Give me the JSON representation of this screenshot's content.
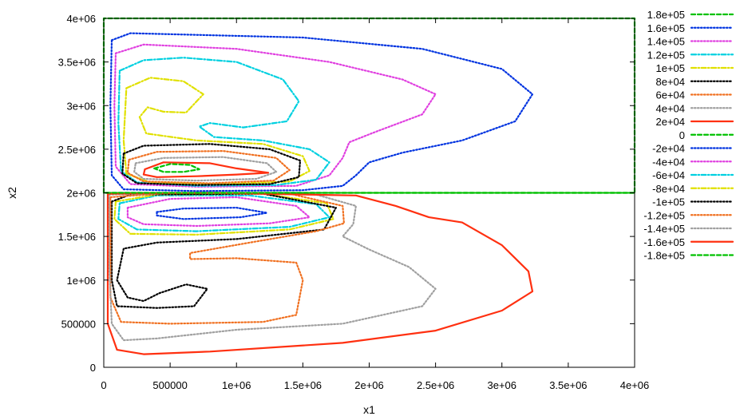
{
  "chart_data": {
    "type": "line",
    "title": "",
    "xlabel": "x1",
    "ylabel": "x2",
    "xlim": [
      0,
      4000000
    ],
    "ylim": [
      0,
      4000000
    ],
    "x_ticks": [
      0,
      500000,
      1000000,
      1500000,
      2000000,
      2500000,
      3000000,
      3500000,
      4000000
    ],
    "x_tick_labels": [
      "0",
      "500000",
      "1e+06",
      "1.5e+06",
      "2e+06",
      "2.5e+06",
      "3e+06",
      "3.5e+06",
      "4e+06"
    ],
    "y_ticks": [
      0,
      500000,
      1000000,
      1500000,
      2000000,
      2500000,
      3000000,
      3500000,
      4000000
    ],
    "y_tick_labels": [
      "0",
      "500000",
      "1e+06",
      "1.5e+06",
      "2e+06",
      "2.5e+06",
      "3e+06",
      "3.5e+06",
      "4e+06"
    ],
    "grid": false,
    "legend_position": "outside-right",
    "series": [
      {
        "name": "1.8e+05",
        "color": "#00c000",
        "dash": "dashed",
        "points": [
          [
            0,
            2000000
          ],
          [
            0,
            4000000
          ],
          [
            4000000,
            4000000
          ],
          [
            4000000,
            2000000
          ],
          [
            0,
            2000000
          ]
        ]
      },
      {
        "name": "1.6e+05",
        "color": "#0033e0",
        "dash": "dotted",
        "points": [
          [
            60000,
            3750000
          ],
          [
            200000,
            3830000
          ],
          [
            1500000,
            3780000
          ],
          [
            2400000,
            3650000
          ],
          [
            3000000,
            3420000
          ],
          [
            3230000,
            3130000
          ],
          [
            3100000,
            2820000
          ],
          [
            2700000,
            2600000
          ],
          [
            2250000,
            2460000
          ],
          [
            2000000,
            2350000
          ],
          [
            1900000,
            2200000
          ],
          [
            1800000,
            2080000
          ],
          [
            1500000,
            2030000
          ],
          [
            700000,
            2020000
          ],
          [
            150000,
            2040000
          ],
          [
            60000,
            2200000
          ],
          [
            50000,
            3000000
          ],
          [
            60000,
            3750000
          ]
        ]
      },
      {
        "name": "1.4e+05",
        "color": "#e040e0",
        "dash": "dotted",
        "points": [
          [
            90000,
            3600000
          ],
          [
            300000,
            3700000
          ],
          [
            1000000,
            3650000
          ],
          [
            1700000,
            3500000
          ],
          [
            2250000,
            3300000
          ],
          [
            2500000,
            3130000
          ],
          [
            2400000,
            2900000
          ],
          [
            2050000,
            2700000
          ],
          [
            1850000,
            2580000
          ],
          [
            1800000,
            2400000
          ],
          [
            1700000,
            2200000
          ],
          [
            1450000,
            2080000
          ],
          [
            700000,
            2070000
          ],
          [
            200000,
            2100000
          ],
          [
            90000,
            2300000
          ],
          [
            80000,
            3000000
          ],
          [
            90000,
            3600000
          ]
        ]
      },
      {
        "name": "1.2e+05",
        "color": "#00d0e0",
        "dash": "dashdot",
        "points": [
          [
            120000,
            3400000
          ],
          [
            300000,
            3520000
          ],
          [
            600000,
            3550000
          ],
          [
            1000000,
            3500000
          ],
          [
            1350000,
            3300000
          ],
          [
            1470000,
            3050000
          ],
          [
            1380000,
            2820000
          ],
          [
            1050000,
            2750000
          ],
          [
            800000,
            2800000
          ],
          [
            720000,
            2760000
          ],
          [
            830000,
            2640000
          ],
          [
            1200000,
            2600000
          ],
          [
            1550000,
            2500000
          ],
          [
            1700000,
            2350000
          ],
          [
            1600000,
            2150000
          ],
          [
            1300000,
            2090000
          ],
          [
            700000,
            2080000
          ],
          [
            250000,
            2120000
          ],
          [
            130000,
            2250000
          ],
          [
            110000,
            2800000
          ],
          [
            120000,
            3400000
          ]
        ]
      },
      {
        "name": "1e+05",
        "color": "#e0e000",
        "dash": "dashdot",
        "points": [
          [
            170000,
            3200000
          ],
          [
            350000,
            3320000
          ],
          [
            600000,
            3280000
          ],
          [
            750000,
            3130000
          ],
          [
            620000,
            2920000
          ],
          [
            450000,
            2930000
          ],
          [
            330000,
            2980000
          ],
          [
            270000,
            2870000
          ],
          [
            320000,
            2680000
          ],
          [
            700000,
            2600000
          ],
          [
            1200000,
            2560000
          ],
          [
            1500000,
            2420000
          ],
          [
            1550000,
            2250000
          ],
          [
            1400000,
            2130000
          ],
          [
            900000,
            2100000
          ],
          [
            350000,
            2120000
          ],
          [
            170000,
            2220000
          ],
          [
            150000,
            2600000
          ],
          [
            170000,
            3200000
          ]
        ]
      },
      {
        "name": "8e+04",
        "color": "#000000",
        "dash": "dotted",
        "points": [
          [
            150000,
            2450000
          ],
          [
            300000,
            2540000
          ],
          [
            800000,
            2560000
          ],
          [
            1250000,
            2500000
          ],
          [
            1480000,
            2370000
          ],
          [
            1470000,
            2180000
          ],
          [
            1250000,
            2100000
          ],
          [
            700000,
            2090000
          ],
          [
            250000,
            2110000
          ],
          [
            140000,
            2220000
          ],
          [
            150000,
            2450000
          ]
        ]
      },
      {
        "name": "6e+04",
        "color": "#f07020",
        "dash": "dotted",
        "points": [
          [
            190000,
            2380000
          ],
          [
            400000,
            2470000
          ],
          [
            900000,
            2480000
          ],
          [
            1300000,
            2400000
          ],
          [
            1400000,
            2260000
          ],
          [
            1280000,
            2140000
          ],
          [
            800000,
            2110000
          ],
          [
            300000,
            2130000
          ],
          [
            180000,
            2230000
          ],
          [
            190000,
            2380000
          ]
        ]
      },
      {
        "name": "4e+04",
        "color": "#a0a0a0",
        "dash": "dotted",
        "points": [
          [
            240000,
            2340000
          ],
          [
            450000,
            2400000
          ],
          [
            900000,
            2410000
          ],
          [
            1230000,
            2340000
          ],
          [
            1300000,
            2240000
          ],
          [
            1150000,
            2160000
          ],
          [
            700000,
            2140000
          ],
          [
            300000,
            2160000
          ],
          [
            230000,
            2240000
          ],
          [
            240000,
            2340000
          ]
        ]
      },
      {
        "name": "2e+04",
        "color": "#ff3010",
        "dash": "solid",
        "points": [
          [
            310000,
            2270000
          ],
          [
            450000,
            2350000
          ],
          [
            800000,
            2340000
          ],
          [
            1000000,
            2280000
          ],
          [
            1240000,
            2230000
          ],
          [
            1000000,
            2210000
          ],
          [
            700000,
            2190000
          ],
          [
            400000,
            2180000
          ],
          [
            300000,
            2210000
          ],
          [
            310000,
            2270000
          ]
        ]
      },
      {
        "name": "0",
        "color": "#00c000",
        "dash": "dashed",
        "points": [
          [
            380000,
            2280000
          ],
          [
            500000,
            2330000
          ],
          [
            650000,
            2320000
          ],
          [
            720000,
            2270000
          ],
          [
            600000,
            2240000
          ],
          [
            450000,
            2240000
          ],
          [
            380000,
            2280000
          ]
        ]
      },
      {
        "name": "-2e+04",
        "color": "#0033e0",
        "dash": "dotted",
        "points": [
          [
            400000,
            1780000
          ],
          [
            600000,
            1820000
          ],
          [
            1000000,
            1830000
          ],
          [
            1230000,
            1770000
          ],
          [
            1030000,
            1720000
          ],
          [
            600000,
            1700000
          ],
          [
            400000,
            1740000
          ],
          [
            400000,
            1780000
          ]
        ]
      },
      {
        "name": "-4e+04",
        "color": "#e040e0",
        "dash": "dotted",
        "points": [
          [
            180000,
            1830000
          ],
          [
            500000,
            1930000
          ],
          [
            1000000,
            1950000
          ],
          [
            1450000,
            1850000
          ],
          [
            1550000,
            1720000
          ],
          [
            1250000,
            1650000
          ],
          [
            700000,
            1620000
          ],
          [
            300000,
            1640000
          ],
          [
            180000,
            1720000
          ],
          [
            180000,
            1830000
          ]
        ]
      },
      {
        "name": "-6e+04",
        "color": "#00d0e0",
        "dash": "dashdot",
        "points": [
          [
            120000,
            1880000
          ],
          [
            400000,
            1970000
          ],
          [
            1100000,
            1970000
          ],
          [
            1600000,
            1870000
          ],
          [
            1700000,
            1720000
          ],
          [
            1400000,
            1610000
          ],
          [
            700000,
            1560000
          ],
          [
            250000,
            1580000
          ],
          [
            110000,
            1700000
          ],
          [
            120000,
            1880000
          ]
        ]
      },
      {
        "name": "-8e+04",
        "color": "#e0e000",
        "dash": "dashdot",
        "points": [
          [
            90000,
            1900000
          ],
          [
            400000,
            1980000
          ],
          [
            1200000,
            1990000
          ],
          [
            1680000,
            1880000
          ],
          [
            1730000,
            1700000
          ],
          [
            1400000,
            1580000
          ],
          [
            700000,
            1520000
          ],
          [
            200000,
            1530000
          ],
          [
            80000,
            1700000
          ],
          [
            90000,
            1900000
          ]
        ]
      },
      {
        "name": "-1e+05",
        "color": "#000000",
        "dash": "dotted",
        "points": [
          [
            60000,
            1900000
          ],
          [
            200000,
            1980000
          ],
          [
            1200000,
            1990000
          ],
          [
            1750000,
            1830000
          ],
          [
            1660000,
            1580000
          ],
          [
            1000000,
            1470000
          ],
          [
            400000,
            1430000
          ],
          [
            150000,
            1360000
          ],
          [
            100000,
            1000000
          ],
          [
            180000,
            800000
          ],
          [
            300000,
            760000
          ],
          [
            420000,
            850000
          ],
          [
            620000,
            950000
          ],
          [
            780000,
            900000
          ],
          [
            680000,
            700000
          ],
          [
            400000,
            680000
          ],
          [
            100000,
            700000
          ],
          [
            60000,
            1000000
          ],
          [
            60000,
            1900000
          ]
        ]
      },
      {
        "name": "-1.2e+05",
        "color": "#f07020",
        "dash": "dotted",
        "points": [
          [
            50000,
            1950000
          ],
          [
            500000,
            2000000
          ],
          [
            1400000,
            1990000
          ],
          [
            1800000,
            1850000
          ],
          [
            1810000,
            1650000
          ],
          [
            1600000,
            1560000
          ],
          [
            1100000,
            1430000
          ],
          [
            650000,
            1310000
          ],
          [
            650000,
            1240000
          ],
          [
            1000000,
            1250000
          ],
          [
            1450000,
            1200000
          ],
          [
            1500000,
            1000000
          ],
          [
            1450000,
            600000
          ],
          [
            1200000,
            520000
          ],
          [
            500000,
            500000
          ],
          [
            130000,
            520000
          ],
          [
            50000,
            800000
          ],
          [
            50000,
            1950000
          ]
        ]
      },
      {
        "name": "-1.4e+05",
        "color": "#a0a0a0",
        "dash": "dotted",
        "points": [
          [
            40000,
            1980000
          ],
          [
            700000,
            2000000
          ],
          [
            1600000,
            1980000
          ],
          [
            1900000,
            1850000
          ],
          [
            1880000,
            1640000
          ],
          [
            1800000,
            1500000
          ],
          [
            2000000,
            1350000
          ],
          [
            2300000,
            1150000
          ],
          [
            2500000,
            900000
          ],
          [
            2400000,
            700000
          ],
          [
            1800000,
            500000
          ],
          [
            1000000,
            430000
          ],
          [
            400000,
            330000
          ],
          [
            150000,
            310000
          ],
          [
            60000,
            500000
          ],
          [
            40000,
            1200000
          ],
          [
            40000,
            1980000
          ]
        ]
      },
      {
        "name": "-1.6e+05",
        "color": "#ff3010",
        "dash": "solid",
        "points": [
          [
            30000,
            1990000
          ],
          [
            800000,
            2000000
          ],
          [
            1900000,
            1970000
          ],
          [
            2200000,
            1850000
          ],
          [
            2450000,
            1720000
          ],
          [
            2700000,
            1660000
          ],
          [
            3000000,
            1400000
          ],
          [
            3200000,
            1100000
          ],
          [
            3230000,
            870000
          ],
          [
            3000000,
            650000
          ],
          [
            2500000,
            420000
          ],
          [
            1800000,
            280000
          ],
          [
            800000,
            180000
          ],
          [
            300000,
            150000
          ],
          [
            100000,
            200000
          ],
          [
            30000,
            500000
          ],
          [
            30000,
            1990000
          ]
        ]
      },
      {
        "name": "-1.8e+05",
        "color": "#00c000",
        "dash": "dashed",
        "points": [
          [
            20000,
            2000000
          ],
          [
            4000000,
            2000000
          ]
        ]
      }
    ]
  }
}
